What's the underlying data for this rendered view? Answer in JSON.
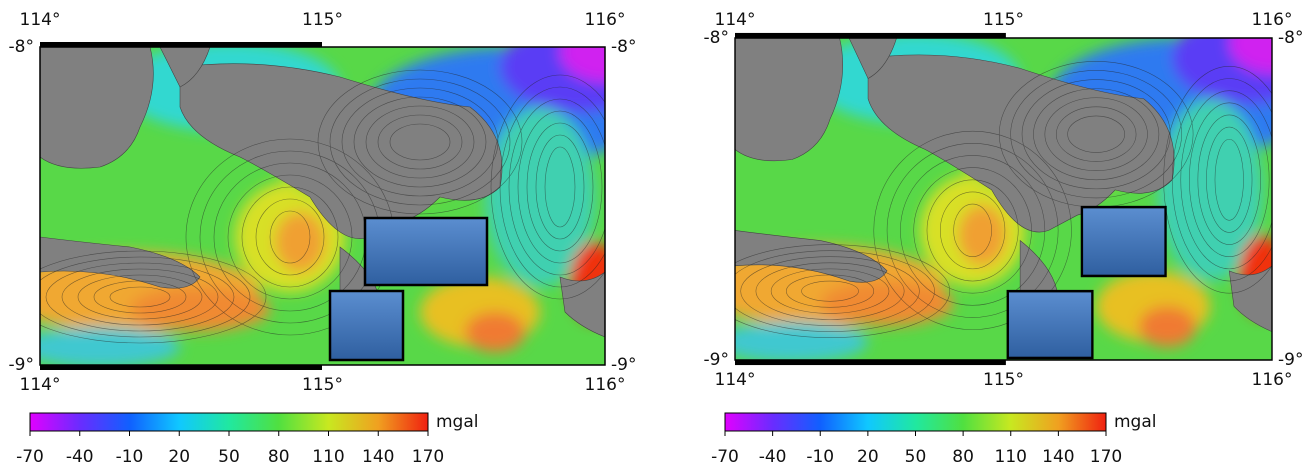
{
  "maps": [
    {
      "lon_labels": [
        "114°",
        "115°",
        "116°"
      ],
      "lat_labels": [
        "-8°",
        "-9°"
      ],
      "colorbar": {
        "ticks": [
          -70,
          -40,
          -10,
          20,
          50,
          80,
          110,
          140,
          170
        ],
        "unit": "mgal",
        "colors": [
          "#e100ff",
          "#6a2cff",
          "#1060ff",
          "#10c8ff",
          "#20e8a0",
          "#50e040",
          "#c8e820",
          "#f0a020",
          "#f02010"
        ]
      }
    },
    {
      "lon_labels": [
        "114°",
        "115°",
        "116°"
      ],
      "lat_labels": [
        "-8°",
        "-9°"
      ],
      "colorbar": {
        "ticks": [
          -70,
          -40,
          -10,
          20,
          50,
          80,
          110,
          140,
          170
        ],
        "unit": "mgal",
        "colors": [
          "#e100ff",
          "#6a2cff",
          "#1060ff",
          "#10c8ff",
          "#20e8a0",
          "#50e040",
          "#c8e820",
          "#f0a020",
          "#f02010"
        ]
      }
    }
  ]
}
